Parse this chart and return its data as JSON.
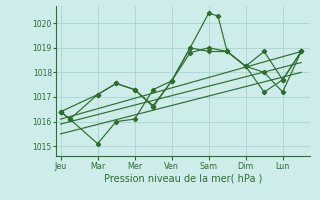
{
  "background_color": "#ceecea",
  "grid_color": "#b0d8d4",
  "line_color": "#2d6e2d",
  "marker_color": "#2d6e2d",
  "xlabel": "Pression niveau de la mer( hPa )",
  "ylim": [
    1014.6,
    1020.7
  ],
  "yticks": [
    1015,
    1016,
    1017,
    1018,
    1019,
    1020
  ],
  "day_labels": [
    "Jeu",
    "Mar",
    "Mer",
    "Ven",
    "Sam",
    "Dim",
    "Lun"
  ],
  "day_positions": [
    0,
    24,
    48,
    72,
    96,
    120,
    144
  ],
  "xlim": [
    -3,
    162
  ],
  "series": [
    {
      "x": [
        0,
        6,
        24,
        36,
        48,
        60,
        72,
        84,
        96,
        102,
        108,
        120,
        132,
        144,
        156
      ],
      "y": [
        1016.4,
        1016.1,
        1017.1,
        1017.55,
        1017.3,
        1016.6,
        1017.65,
        1019.0,
        1020.4,
        1020.3,
        1018.85,
        1018.25,
        1018.85,
        1017.7,
        1018.85
      ],
      "marker": true
    },
    {
      "x": [
        0,
        6,
        24,
        36,
        48,
        60,
        72,
        84,
        96,
        108,
        120,
        132,
        144,
        156
      ],
      "y": [
        1016.4,
        1016.1,
        1015.1,
        1016.0,
        1016.1,
        1017.3,
        1017.65,
        1018.8,
        1019.0,
        1018.85,
        1018.25,
        1018.0,
        1017.2,
        1018.85
      ],
      "marker": true
    },
    {
      "x": [
        0,
        24,
        36,
        48,
        60,
        72,
        84,
        96,
        108,
        120,
        132,
        144,
        156
      ],
      "y": [
        1016.4,
        1017.1,
        1017.55,
        1017.3,
        1016.65,
        1017.65,
        1019.0,
        1018.85,
        1018.85,
        1018.25,
        1017.2,
        1017.7,
        1018.85
      ],
      "marker": true
    },
    {
      "x": [
        0,
        156
      ],
      "y": [
        1016.1,
        1018.85
      ],
      "marker": false
    },
    {
      "x": [
        0,
        156
      ],
      "y": [
        1015.9,
        1018.4
      ],
      "marker": false
    },
    {
      "x": [
        0,
        156
      ],
      "y": [
        1015.5,
        1018.0
      ],
      "marker": false
    }
  ]
}
